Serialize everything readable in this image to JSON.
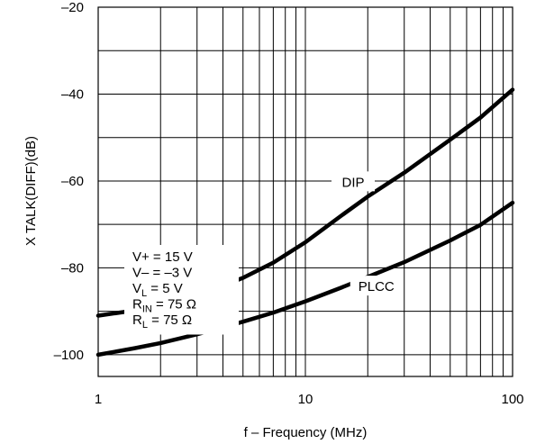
{
  "chart_data": {
    "type": "line",
    "x_scale": "log",
    "xlim": [
      1,
      100
    ],
    "ylim": [
      -105,
      -20
    ],
    "xlabel": "f – Frequency (MHz)",
    "ylabel": "X TALK(DIFF)(dB)",
    "x_ticks": [
      {
        "value": 1,
        "label": "1"
      },
      {
        "value": 10,
        "label": "10"
      },
      {
        "value": 100,
        "label": "100"
      }
    ],
    "y_ticks": [
      {
        "value": -100,
        "label": "–100"
      },
      {
        "value": -80,
        "label": "–80"
      },
      {
        "value": -60,
        "label": "–60"
      },
      {
        "value": -40,
        "label": "–40"
      },
      {
        "value": -20,
        "label": "–20"
      }
    ],
    "grid": true,
    "series": [
      {
        "name": "PLCC",
        "x": [
          1,
          1.5,
          2,
          3,
          5,
          7,
          10,
          15,
          20,
          30,
          50,
          70,
          100
        ],
        "y": [
          -100,
          -98.5,
          -97.3,
          -95.3,
          -92.4,
          -90.3,
          -87.7,
          -84.5,
          -82.1,
          -78.7,
          -73.7,
          -70.1,
          -65
        ]
      },
      {
        "name": "DIP",
        "x": [
          1,
          1.5,
          2,
          3,
          5,
          7,
          10,
          15,
          20,
          30,
          50,
          70,
          100
        ],
        "y": [
          -91,
          -89.8,
          -88.7,
          -86.4,
          -82.3,
          -78.8,
          -74.1,
          -67.9,
          -63.6,
          -58.1,
          -50.5,
          -45.4,
          -39
        ]
      }
    ],
    "annotations": [
      {
        "text": "PLCC",
        "x": 22,
        "y": -84.5
      },
      {
        "text": "DIP",
        "x": 17,
        "y": -60.5
      }
    ],
    "conditions": [
      {
        "main": "V+ = 15 V",
        "sub": "",
        "tail": ""
      },
      {
        "main": "V– = –3 V",
        "sub": "",
        "tail": ""
      },
      {
        "main": "V",
        "sub": "L",
        "tail": " = 5 V"
      },
      {
        "main": "R",
        "sub": "IN",
        "tail": " = 75 Ω"
      },
      {
        "main": "R",
        "sub": "L",
        "tail": " = 75 Ω"
      }
    ]
  }
}
